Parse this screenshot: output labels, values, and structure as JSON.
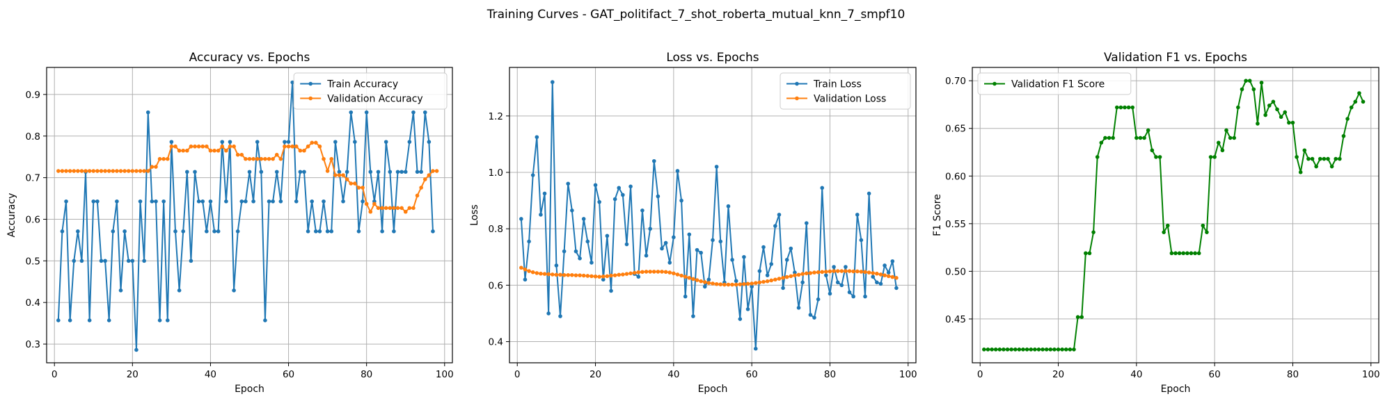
{
  "figure": {
    "title": "Training Curves - GAT_politifact_7_shot_roberta_mutual_knn_7_smpf10"
  },
  "colors": {
    "blue": "#1f77b4",
    "orange": "#ff7f0e",
    "green": "#008000"
  },
  "chart_data": [
    {
      "type": "line",
      "title": "Accuracy vs. Epochs",
      "xlabel": "Epoch",
      "ylabel": "Accuracy",
      "xlim": [
        -2,
        102
      ],
      "ylim": [
        0.255,
        0.965
      ],
      "xticks": [
        0,
        20,
        40,
        60,
        80,
        100
      ],
      "yticks": [
        0.3,
        0.4,
        0.5,
        0.6,
        0.7,
        0.8,
        0.9
      ],
      "ytick_labels": [
        "0.3",
        "0.4",
        "0.5",
        "0.6",
        "0.7",
        "0.8",
        "0.9"
      ],
      "grid": true,
      "legend": "upper right",
      "series": [
        {
          "name": "Train Accuracy",
          "color": "#1f77b4",
          "values": [
            0.357,
            0.571,
            0.643,
            0.357,
            0.5,
            0.571,
            0.5,
            0.714,
            0.357,
            0.643,
            0.643,
            0.5,
            0.5,
            0.357,
            0.571,
            0.643,
            0.429,
            0.571,
            0.5,
            0.5,
            0.286,
            0.643,
            0.5,
            0.857,
            0.643,
            0.643,
            0.357,
            0.643,
            0.357,
            0.786,
            0.571,
            0.429,
            0.571,
            0.714,
            0.5,
            0.714,
            0.643,
            0.643,
            0.571,
            0.643,
            0.571,
            0.571,
            0.786,
            0.643,
            0.786,
            0.429,
            0.571,
            0.643,
            0.643,
            0.714,
            0.643,
            0.786,
            0.714,
            0.357,
            0.643,
            0.643,
            0.714,
            0.643,
            0.786,
            0.786,
            0.929,
            0.643,
            0.714,
            0.714,
            0.571,
            0.643,
            0.571,
            0.571,
            0.643,
            0.571,
            0.571,
            0.786,
            0.714,
            0.643,
            0.714,
            0.857,
            0.786,
            0.571,
            0.643,
            0.857,
            0.714,
            0.643,
            0.714,
            0.571,
            0.786,
            0.714,
            0.571,
            0.714,
            0.714,
            0.714,
            0.786,
            0.857,
            0.714,
            0.714,
            0.857,
            0.786,
            0.571
          ]
        },
        {
          "name": "Validation Accuracy",
          "color": "#ff7f0e",
          "values": [
            0.716,
            0.716,
            0.716,
            0.716,
            0.716,
            0.716,
            0.716,
            0.716,
            0.716,
            0.716,
            0.716,
            0.716,
            0.716,
            0.716,
            0.716,
            0.716,
            0.716,
            0.716,
            0.716,
            0.716,
            0.716,
            0.716,
            0.716,
            0.716,
            0.726,
            0.726,
            0.745,
            0.745,
            0.745,
            0.775,
            0.775,
            0.765,
            0.765,
            0.765,
            0.775,
            0.775,
            0.775,
            0.775,
            0.775,
            0.765,
            0.765,
            0.765,
            0.775,
            0.765,
            0.775,
            0.775,
            0.755,
            0.755,
            0.745,
            0.745,
            0.745,
            0.745,
            0.745,
            0.745,
            0.745,
            0.745,
            0.755,
            0.745,
            0.775,
            0.775,
            0.775,
            0.775,
            0.765,
            0.765,
            0.775,
            0.784,
            0.784,
            0.775,
            0.745,
            0.716,
            0.745,
            0.706,
            0.706,
            0.706,
            0.696,
            0.686,
            0.686,
            0.676,
            0.676,
            0.637,
            0.618,
            0.637,
            0.627,
            0.627,
            0.627,
            0.627,
            0.627,
            0.627,
            0.627,
            0.618,
            0.627,
            0.627,
            0.657,
            0.676,
            0.696,
            0.706,
            0.716,
            0.716
          ]
        }
      ]
    },
    {
      "type": "line",
      "title": "Loss vs. Epochs",
      "xlabel": "Epoch",
      "ylabel": "Loss",
      "xlim": [
        -2,
        102
      ],
      "ylim": [
        0.325,
        1.372
      ],
      "xticks": [
        0,
        20,
        40,
        60,
        80,
        100
      ],
      "yticks": [
        0.4,
        0.6,
        0.8,
        1.0,
        1.2
      ],
      "ytick_labels": [
        "0.4",
        "0.6",
        "0.8",
        "1.0",
        "1.2"
      ],
      "grid": true,
      "legend": "upper right",
      "series": [
        {
          "name": "Train Loss",
          "color": "#1f77b4",
          "values": [
            0.835,
            0.62,
            0.755,
            0.99,
            1.125,
            0.85,
            0.925,
            0.5,
            1.32,
            0.67,
            0.49,
            0.72,
            0.96,
            0.865,
            0.72,
            0.695,
            0.835,
            0.755,
            0.68,
            0.955,
            0.895,
            0.62,
            0.775,
            0.58,
            0.905,
            0.945,
            0.92,
            0.745,
            0.95,
            0.64,
            0.63,
            0.865,
            0.705,
            0.8,
            1.04,
            0.915,
            0.73,
            0.75,
            0.68,
            0.77,
            1.005,
            0.9,
            0.56,
            0.78,
            0.49,
            0.725,
            0.715,
            0.595,
            0.62,
            0.76,
            1.02,
            0.755,
            0.61,
            0.88,
            0.69,
            0.615,
            0.48,
            0.7,
            0.515,
            0.595,
            0.375,
            0.65,
            0.735,
            0.635,
            0.675,
            0.81,
            0.85,
            0.59,
            0.69,
            0.73,
            0.645,
            0.52,
            0.61,
            0.82,
            0.495,
            0.485,
            0.55,
            0.945,
            0.635,
            0.57,
            0.665,
            0.61,
            0.6,
            0.665,
            0.575,
            0.56,
            0.85,
            0.76,
            0.56,
            0.925,
            0.63,
            0.61,
            0.605,
            0.67,
            0.645,
            0.685,
            0.59
          ]
        },
        {
          "name": "Validation Loss",
          "color": "#ff7f0e",
          "values": [
            0.662,
            0.656,
            0.65,
            0.646,
            0.643,
            0.641,
            0.64,
            0.639,
            0.638,
            0.637,
            0.637,
            0.636,
            0.636,
            0.636,
            0.635,
            0.635,
            0.634,
            0.633,
            0.632,
            0.631,
            0.63,
            0.631,
            0.632,
            0.634,
            0.635,
            0.637,
            0.638,
            0.64,
            0.642,
            0.644,
            0.646,
            0.647,
            0.648,
            0.648,
            0.648,
            0.648,
            0.648,
            0.647,
            0.645,
            0.642,
            0.638,
            0.634,
            0.63,
            0.626,
            0.622,
            0.618,
            0.614,
            0.611,
            0.608,
            0.606,
            0.604,
            0.603,
            0.602,
            0.602,
            0.602,
            0.602,
            0.603,
            0.604,
            0.605,
            0.606,
            0.608,
            0.61,
            0.612,
            0.614,
            0.617,
            0.62,
            0.623,
            0.626,
            0.629,
            0.632,
            0.635,
            0.637,
            0.64,
            0.642,
            0.643,
            0.645,
            0.646,
            0.647,
            0.648,
            0.649,
            0.65,
            0.65,
            0.65,
            0.65,
            0.65,
            0.649,
            0.649,
            0.648,
            0.647,
            0.645,
            0.643,
            0.641,
            0.638,
            0.635,
            0.632,
            0.629,
            0.626
          ]
        }
      ]
    },
    {
      "type": "line",
      "title": "Validation F1 vs. Epochs",
      "xlabel": "Epoch",
      "ylabel": "F1 Score",
      "xlim": [
        -2,
        102
      ],
      "ylim": [
        0.404,
        0.714
      ],
      "xticks": [
        0,
        20,
        40,
        60,
        80,
        100
      ],
      "yticks": [
        0.45,
        0.5,
        0.55,
        0.6,
        0.65,
        0.7
      ],
      "ytick_labels": [
        "0.45",
        "0.50",
        "0.55",
        "0.60",
        "0.65",
        "0.70"
      ],
      "grid": true,
      "legend": "upper left",
      "series": [
        {
          "name": "Validation F1 Score",
          "color": "#008000",
          "values": [
            0.418,
            0.418,
            0.418,
            0.418,
            0.418,
            0.418,
            0.418,
            0.418,
            0.418,
            0.418,
            0.418,
            0.418,
            0.418,
            0.418,
            0.418,
            0.418,
            0.418,
            0.418,
            0.418,
            0.418,
            0.418,
            0.418,
            0.418,
            0.418,
            0.452,
            0.452,
            0.519,
            0.519,
            0.541,
            0.62,
            0.635,
            0.64,
            0.64,
            0.64,
            0.672,
            0.672,
            0.672,
            0.672,
            0.672,
            0.64,
            0.64,
            0.64,
            0.648,
            0.627,
            0.62,
            0.62,
            0.541,
            0.548,
            0.519,
            0.519,
            0.519,
            0.519,
            0.519,
            0.519,
            0.519,
            0.519,
            0.548,
            0.541,
            0.62,
            0.62,
            0.635,
            0.627,
            0.648,
            0.64,
            0.64,
            0.672,
            0.691,
            0.7,
            0.7,
            0.691,
            0.655,
            0.698,
            0.664,
            0.674,
            0.678,
            0.67,
            0.662,
            0.667,
            0.656,
            0.656,
            0.62,
            0.604,
            0.627,
            0.618,
            0.618,
            0.61,
            0.618,
            0.618,
            0.618,
            0.61,
            0.618,
            0.618,
            0.642,
            0.66,
            0.672,
            0.678,
            0.687,
            0.678
          ]
        }
      ]
    }
  ]
}
